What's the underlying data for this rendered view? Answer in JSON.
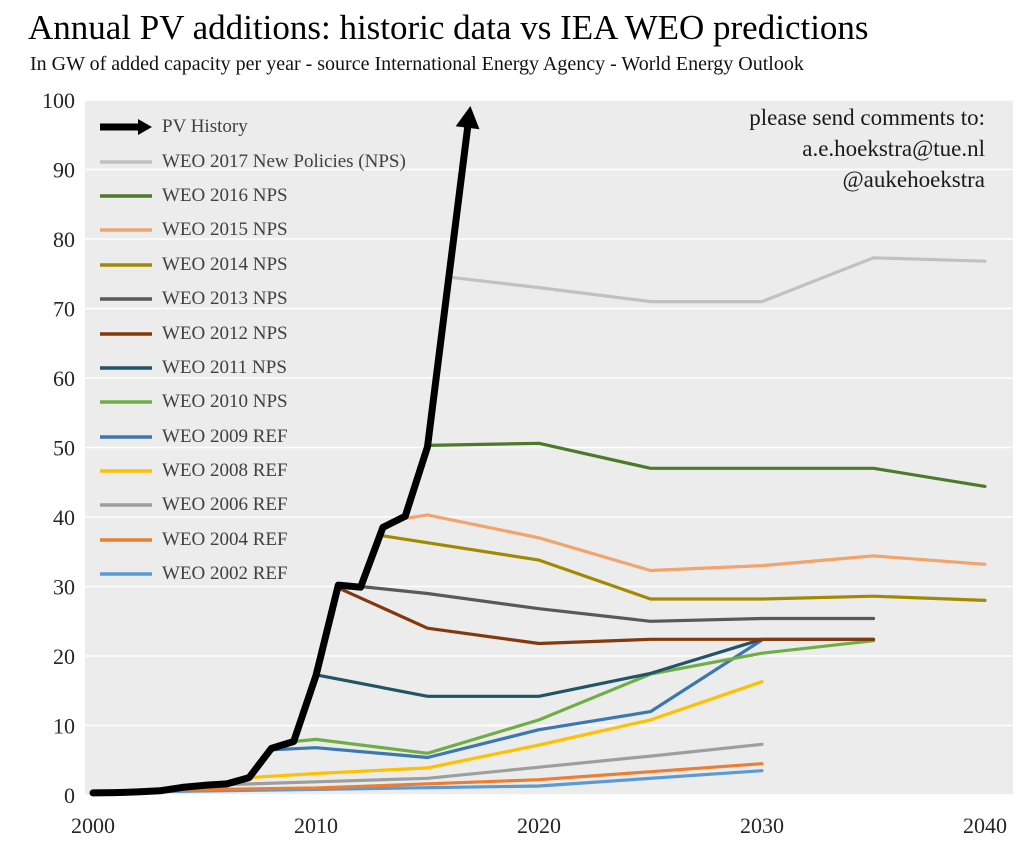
{
  "chart_data": {
    "type": "line",
    "title": "Annual PV additions: historic data vs IEA WEO predictions",
    "subtitle": "In GW of added capacity per year - source International Energy Agency - World Energy Outlook",
    "annotations": [
      "please send comments to:",
      "a.e.hoekstra@tue.nl",
      "@aukehoekstra"
    ],
    "xlabel": "",
    "ylabel": "",
    "xlim": [
      2000,
      2040
    ],
    "ylim": [
      0,
      100
    ],
    "x_ticks": [
      "2000",
      "2010",
      "2020",
      "2030",
      "2040"
    ],
    "x_tick_values": [
      2000,
      2010,
      2020,
      2030,
      2040
    ],
    "y_ticks": [
      0,
      10,
      20,
      30,
      40,
      50,
      60,
      70,
      80,
      90,
      100
    ],
    "grid": "horizontal",
    "legend_position": "inside-top-left",
    "colors": {
      "plot_bg": "#ececec",
      "grid": "#ffffff",
      "axis_text": "#262626"
    },
    "series": [
      {
        "name": "PV History",
        "color": "#000000",
        "width": 7,
        "arrow": true,
        "points": [
          [
            2000,
            0.3
          ],
          [
            2001,
            0.35
          ],
          [
            2002,
            0.45
          ],
          [
            2003,
            0.6
          ],
          [
            2004,
            1.1
          ],
          [
            2005,
            1.4
          ],
          [
            2006,
            1.6
          ],
          [
            2007,
            2.5
          ],
          [
            2008,
            6.7
          ],
          [
            2009,
            7.7
          ],
          [
            2010,
            17.2
          ],
          [
            2011,
            30.2
          ],
          [
            2012,
            29.9
          ],
          [
            2013,
            38.5
          ],
          [
            2014,
            40.1
          ],
          [
            2015,
            50.1
          ],
          [
            2016.8,
            96
          ]
        ]
      },
      {
        "name": "WEO 2017 New Policies (NPS)",
        "color": "#c1c1c1",
        "width": 3.2,
        "arrow": false,
        "points": [
          [
            2016,
            74.5
          ],
          [
            2020,
            73
          ],
          [
            2025,
            71
          ],
          [
            2030,
            71
          ],
          [
            2035,
            77.3
          ],
          [
            2040,
            76.8
          ]
        ]
      },
      {
        "name": "WEO 2016 NPS",
        "color": "#4c7a29",
        "width": 3.2,
        "arrow": false,
        "points": [
          [
            2015,
            50.3
          ],
          [
            2020,
            50.6
          ],
          [
            2025,
            47
          ],
          [
            2030,
            47
          ],
          [
            2035,
            47
          ],
          [
            2040,
            44.4
          ]
        ]
      },
      {
        "name": "WEO 2015 NPS",
        "color": "#f3a36c",
        "width": 3.2,
        "arrow": false,
        "points": [
          [
            2014,
            39.8
          ],
          [
            2015,
            40.3
          ],
          [
            2020,
            37
          ],
          [
            2025,
            32.3
          ],
          [
            2030,
            33
          ],
          [
            2035,
            34.4
          ],
          [
            2040,
            33.2
          ]
        ]
      },
      {
        "name": "WEO 2014 NPS",
        "color": "#a28a00",
        "width": 3.2,
        "arrow": false,
        "points": [
          [
            2013,
            37.3
          ],
          [
            2020,
            33.8
          ],
          [
            2025,
            28.2
          ],
          [
            2030,
            28.2
          ],
          [
            2035,
            28.6
          ],
          [
            2040,
            28
          ]
        ]
      },
      {
        "name": "WEO 2013 NPS",
        "color": "#595959",
        "width": 3.2,
        "arrow": false,
        "points": [
          [
            2012,
            30
          ],
          [
            2015,
            29
          ],
          [
            2020,
            26.8
          ],
          [
            2025,
            25
          ],
          [
            2030,
            25.4
          ],
          [
            2035,
            25.4
          ]
        ]
      },
      {
        "name": "WEO 2012 NPS",
        "color": "#84390b",
        "width": 3.2,
        "arrow": false,
        "points": [
          [
            2011,
            29.8
          ],
          [
            2015,
            24
          ],
          [
            2020,
            21.8
          ],
          [
            2025,
            22.4
          ],
          [
            2030,
            22.4
          ],
          [
            2035,
            22.4
          ]
        ]
      },
      {
        "name": "WEO 2011 NPS",
        "color": "#1f5566",
        "width": 3.2,
        "arrow": false,
        "points": [
          [
            2010,
            17.3
          ],
          [
            2015,
            14.2
          ],
          [
            2020,
            14.2
          ],
          [
            2025,
            17.5
          ],
          [
            2030,
            22.4
          ],
          [
            2035,
            22.4
          ]
        ]
      },
      {
        "name": "WEO 2010 NPS",
        "color": "#6fae44",
        "width": 3.2,
        "arrow": false,
        "points": [
          [
            2009,
            7.7
          ],
          [
            2010,
            8
          ],
          [
            2015,
            6
          ],
          [
            2020,
            10.8
          ],
          [
            2025,
            17.4
          ],
          [
            2030,
            20.4
          ],
          [
            2035,
            22.2
          ]
        ]
      },
      {
        "name": "WEO 2009 REF",
        "color": "#3b77b2",
        "width": 3.2,
        "arrow": false,
        "points": [
          [
            2008,
            6.5
          ],
          [
            2010,
            6.8
          ],
          [
            2015,
            5.4
          ],
          [
            2020,
            9.4
          ],
          [
            2025,
            12
          ],
          [
            2030,
            22.3
          ]
        ]
      },
      {
        "name": "WEO 2008 REF",
        "color": "#ffc000",
        "width": 3.2,
        "arrow": false,
        "points": [
          [
            2007,
            2.5
          ],
          [
            2010,
            3.1
          ],
          [
            2015,
            3.9
          ],
          [
            2020,
            7.2
          ],
          [
            2025,
            10.8
          ],
          [
            2030,
            16.3
          ]
        ]
      },
      {
        "name": "WEO 2006 REF",
        "color": "#9e9e9e",
        "width": 3.2,
        "arrow": false,
        "points": [
          [
            2005,
            1.4
          ],
          [
            2010,
            1.9
          ],
          [
            2015,
            2.4
          ],
          [
            2020,
            4
          ],
          [
            2025,
            5.6
          ],
          [
            2030,
            7.3
          ]
        ]
      },
      {
        "name": "WEO 2004 REF",
        "color": "#ed7d31",
        "width": 3.2,
        "arrow": false,
        "points": [
          [
            2003,
            0.7
          ],
          [
            2010,
            1
          ],
          [
            2020,
            2.2
          ],
          [
            2030,
            4.5
          ]
        ]
      },
      {
        "name": "WEO 2002 REF",
        "color": "#5b9bd5",
        "width": 3.2,
        "arrow": false,
        "points": [
          [
            2001,
            0.4
          ],
          [
            2010,
            0.8
          ],
          [
            2020,
            1.3
          ],
          [
            2030,
            3.5
          ]
        ]
      }
    ]
  }
}
